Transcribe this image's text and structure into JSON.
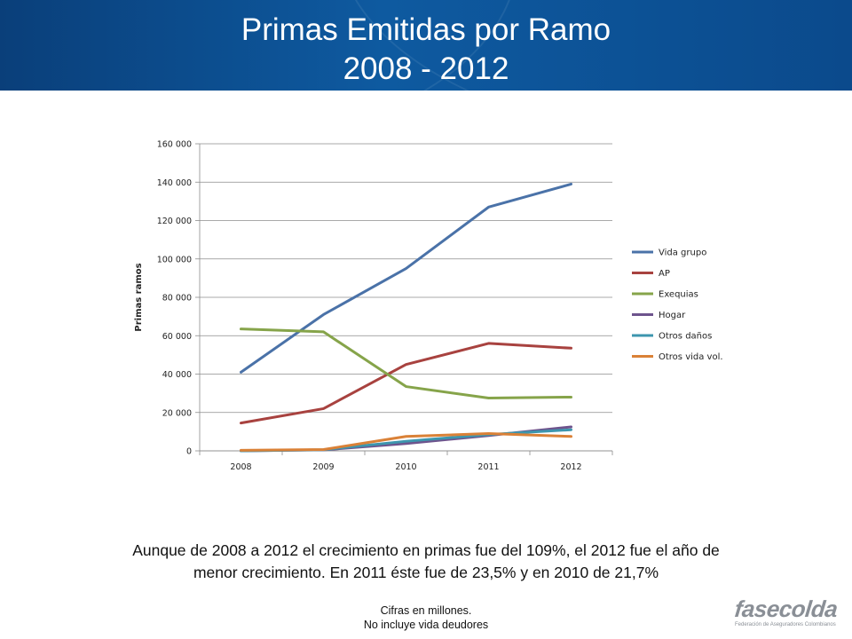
{
  "slide": {
    "title_line1": "Primas Emitidas por Ramo",
    "title_line2": "2008 - 2012",
    "caption_line1": "Aunque de 2008 a 2012 el crecimiento en primas fue del 109%, el 2012 fue el año de",
    "caption_line2": "menor crecimiento. En 2011 éste fue de 23,5% y en 2010 de 21,7%",
    "note_line1": "Cifras en millones.",
    "note_line2": "No incluye vida deudores",
    "logo_text": "fasecolda",
    "logo_subtext": "Federación de Aseguradores Colombianos",
    "header_color": "#0e5aa0"
  },
  "chart_data": {
    "type": "line",
    "categories": [
      "2008",
      "2009",
      "2010",
      "2011",
      "2012"
    ],
    "ylabel": "Primas ramos",
    "ylim": [
      0,
      160000
    ],
    "yticks": [
      0,
      20000,
      40000,
      60000,
      80000,
      100000,
      120000,
      140000,
      160000
    ],
    "ytick_labels": [
      "0",
      "20 000",
      "40 000",
      "60 000",
      "80 000",
      "100 000",
      "120 000",
      "140 000",
      "160 000"
    ],
    "grid": true,
    "legend_position": "right",
    "series": [
      {
        "name": "Vida grupo",
        "color": "#4a72a8",
        "values": [
          41000,
          71000,
          95000,
          127000,
          139000
        ]
      },
      {
        "name": "AP",
        "color": "#a8423f",
        "values": [
          14500,
          22000,
          45000,
          56000,
          53500
        ]
      },
      {
        "name": "Exequias",
        "color": "#86a44a",
        "values": [
          63500,
          62000,
          33500,
          27500,
          28000
        ]
      },
      {
        "name": "Hogar",
        "color": "#6e548d",
        "values": [
          0,
          500,
          3800,
          8000,
          12500
        ]
      },
      {
        "name": "Otros daños",
        "color": "#3d96ae",
        "values": [
          0,
          600,
          5000,
          8500,
          11000
        ]
      },
      {
        "name": "Otros vida vol.",
        "color": "#da8137",
        "values": [
          300,
          700,
          7500,
          9000,
          7500
        ]
      }
    ]
  }
}
